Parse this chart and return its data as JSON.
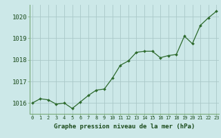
{
  "x": [
    0,
    1,
    2,
    3,
    4,
    5,
    6,
    7,
    8,
    9,
    10,
    11,
    12,
    13,
    14,
    15,
    16,
    17,
    18,
    19,
    20,
    21,
    22,
    23
  ],
  "y": [
    1016.0,
    1016.2,
    1016.15,
    1015.95,
    1016.0,
    1015.75,
    1016.05,
    1016.35,
    1016.6,
    1016.65,
    1017.15,
    1017.75,
    1017.95,
    1018.35,
    1018.4,
    1018.4,
    1018.1,
    1018.2,
    1018.25,
    1019.1,
    1018.75,
    1019.6,
    1019.95,
    1020.25
  ],
  "line_color": "#2d6a2d",
  "marker_color": "#2d6a2d",
  "bg_color": "#cce8e8",
  "grid_color": "#aac8c8",
  "axis_label_color": "#1a4a1a",
  "tick_color": "#1a4a1a",
  "spine_color": "#7aaa7a",
  "xlabel": "Graphe pression niveau de la mer (hPa)",
  "ylim": [
    1015.5,
    1020.55
  ],
  "yticks": [
    1016,
    1017,
    1018,
    1019,
    1020
  ],
  "xticks": [
    0,
    1,
    2,
    3,
    4,
    5,
    6,
    7,
    8,
    9,
    10,
    11,
    12,
    13,
    14,
    15,
    16,
    17,
    18,
    19,
    20,
    21,
    22,
    23
  ],
  "xlim": [
    -0.3,
    23.3
  ]
}
